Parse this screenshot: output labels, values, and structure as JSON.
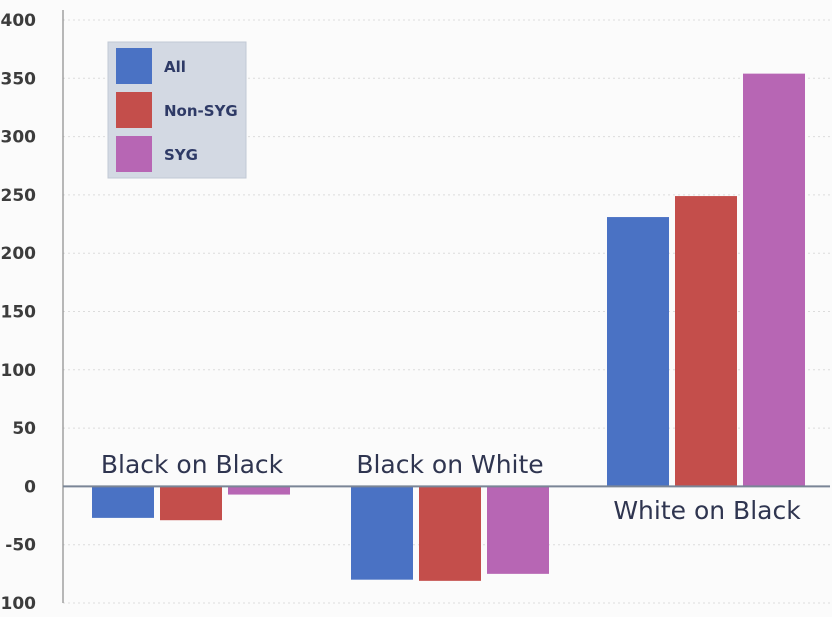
{
  "chart_data": {
    "type": "bar",
    "title": "",
    "xlabel": "",
    "ylabel": "",
    "ylim": [
      -100,
      400
    ],
    "yticks": [
      400,
      350,
      300,
      250,
      200,
      150,
      100,
      50,
      0,
      -50,
      -100
    ],
    "ytick_labels": [
      "400",
      "350",
      "300",
      "250",
      "200",
      "150",
      "100",
      "50",
      "0",
      "-50",
      "-100"
    ],
    "categories": [
      "Black on Black",
      "Black on White",
      "White on Black"
    ],
    "series": [
      {
        "name": "All",
        "color": "#4a72c4",
        "values": [
          -27,
          -80,
          231
        ]
      },
      {
        "name": "Non-SYG",
        "color": "#c44e4b",
        "values": [
          -29,
          -81,
          249
        ]
      },
      {
        "name": "SYG",
        "color": "#b766b4",
        "values": [
          -7,
          -75,
          354
        ]
      }
    ],
    "grid": true,
    "legend": "top-left"
  }
}
